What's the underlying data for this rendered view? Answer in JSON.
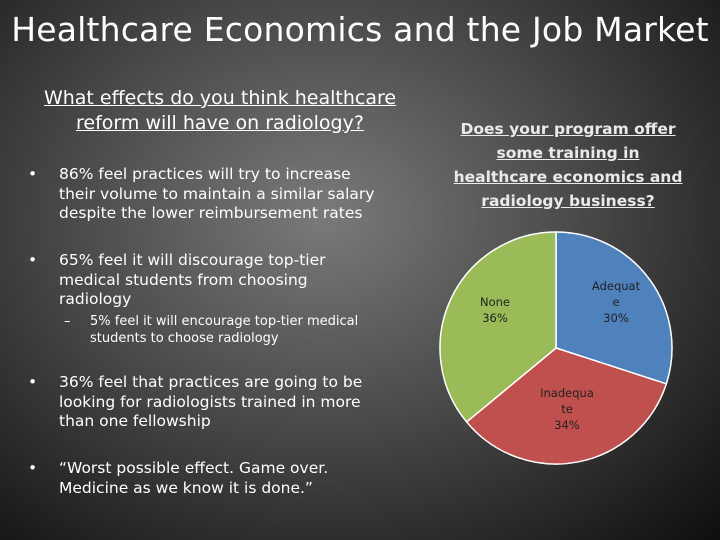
{
  "title": "Healthcare Economics and the Job Market",
  "left": {
    "heading_line1": "What effects do you think healthcare",
    "heading_line2": "reform will have on radiology?",
    "bullet_char": "•",
    "dash_char": "–",
    "bullets": [
      {
        "lines": [
          "86% feel practices will try to increase",
          "their volume to maintain a similar salary",
          "despite the lower reimbursement rates"
        ]
      },
      {
        "lines": [
          "65% feel it will discourage top-tier",
          "medical students from choosing",
          "radiology"
        ]
      },
      {
        "lines": [
          "36% feel that practices are going to be",
          "looking for radiologists trained in more",
          "than one fellowship"
        ]
      },
      {
        "lines": [
          "“Worst possible effect.  Game over.",
          "Medicine as we know it is done.”"
        ]
      }
    ],
    "sub_bullet": {
      "lines": [
        "5% feel it will encourage top-tier medical",
        "students to choose radiology"
      ]
    }
  },
  "right": {
    "heading_lines": [
      "Does your program offer",
      "some training in",
      "healthcare economics and",
      "radiology business?"
    ]
  },
  "chart_data": {
    "type": "pie",
    "title": "",
    "slices": [
      {
        "label_lines": [
          "Adequat",
          "e"
        ],
        "pct_text": "30%",
        "value": 30,
        "color": "#4f81bd"
      },
      {
        "label_lines": [
          "Inadequa",
          "te"
        ],
        "pct_text": "34%",
        "value": 34,
        "color": "#c0504d"
      },
      {
        "label_lines": [
          "None"
        ],
        "pct_text": "36%",
        "value": 36,
        "color": "#9bbb59"
      }
    ]
  }
}
